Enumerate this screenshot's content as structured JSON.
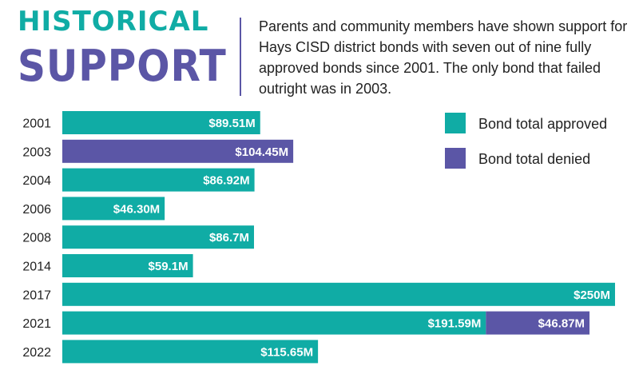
{
  "header": {
    "title_line1": "HISTORICAL",
    "title_line2": "SUPPORT",
    "description": "Parents and community members have shown support for Hays CISD district bonds with seven out of nine fully approved bonds since 2001. The only bond that failed outright was in 2003."
  },
  "colors": {
    "approved": "#10aca5",
    "denied": "#5b56a6"
  },
  "chart_data": {
    "type": "bar",
    "orientation": "horizontal",
    "stacked": true,
    "categories": [
      "2001",
      "2003",
      "2004",
      "2006",
      "2008",
      "2014",
      "2017",
      "2021",
      "2022"
    ],
    "unit": "million USD",
    "series": [
      {
        "name": "Bond total approved",
        "values": [
          89.51,
          0,
          86.92,
          46.3,
          86.7,
          59.1,
          250,
          191.59,
          115.65
        ]
      },
      {
        "name": "Bond total denied",
        "values": [
          0,
          104.45,
          0,
          0,
          0,
          0,
          0,
          46.87,
          0
        ]
      }
    ],
    "labels": [
      [
        "$89.51M",
        ""
      ],
      [
        "",
        "$104.45M"
      ],
      [
        "$86.92M",
        ""
      ],
      [
        "$46.30M",
        ""
      ],
      [
        "$86.7M",
        ""
      ],
      [
        "$59.1M",
        ""
      ],
      [
        "$250M",
        ""
      ],
      [
        "$191.59M",
        "$46.87M"
      ],
      [
        "$115.65M",
        ""
      ]
    ],
    "xlim": [
      0,
      250
    ],
    "grid": false,
    "legend_position": "top-right"
  }
}
